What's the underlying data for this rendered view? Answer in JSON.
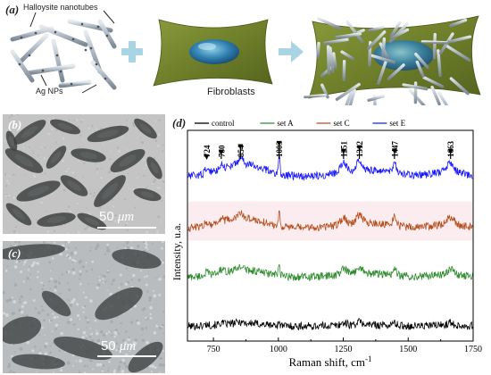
{
  "schematic": {
    "panel_label": "(a)",
    "nanotube_label": "Halloysite nanotubes",
    "particle_label": "Ag NPs",
    "cell_label": "Fibroblasts"
  },
  "micrograph_b": {
    "panel_label": "(b)",
    "scale_value": "50",
    "scale_unit": "μm"
  },
  "micrograph_c": {
    "panel_label": "(c)",
    "scale_value": "50",
    "scale_unit": "μm"
  },
  "spectrum_panel": {
    "panel_label": "(d)"
  },
  "colors": {
    "control": "#000000",
    "setA": "#2e8b2e",
    "setC": "#b5501e",
    "setE": "#1a1aff",
    "arrow_accent": "#7ec8d8"
  },
  "chart_data": {
    "type": "line",
    "xlabel": "Raman shift, cm",
    "xlabel_superscript": "-1",
    "ylabel": "Intensity, u.a.",
    "xlim": [
      650,
      1750
    ],
    "xticks": [
      750,
      1000,
      1250,
      1500,
      1750
    ],
    "peak_annotations": [
      {
        "value": 724,
        "label": "724"
      },
      {
        "value": 780,
        "label": "780"
      },
      {
        "value": 854,
        "label": "854"
      },
      {
        "value": 1003,
        "label": "1003"
      },
      {
        "value": 1251,
        "label": "1251"
      },
      {
        "value": 1312,
        "label": "1312"
      },
      {
        "value": 1447,
        "label": "1447"
      },
      {
        "value": 1663,
        "label": "1663"
      }
    ],
    "series": [
      {
        "name": "control",
        "key": "control",
        "offset": 0.0,
        "amplitude": 0.25
      },
      {
        "name": "set A",
        "key": "setA",
        "offset": 1.0,
        "amplitude": 0.6
      },
      {
        "name": "set C",
        "key": "setC",
        "offset": 2.0,
        "amplitude": 0.8
      },
      {
        "name": "set E",
        "key": "setE",
        "offset": 3.05,
        "amplitude": 1.0
      }
    ]
  }
}
